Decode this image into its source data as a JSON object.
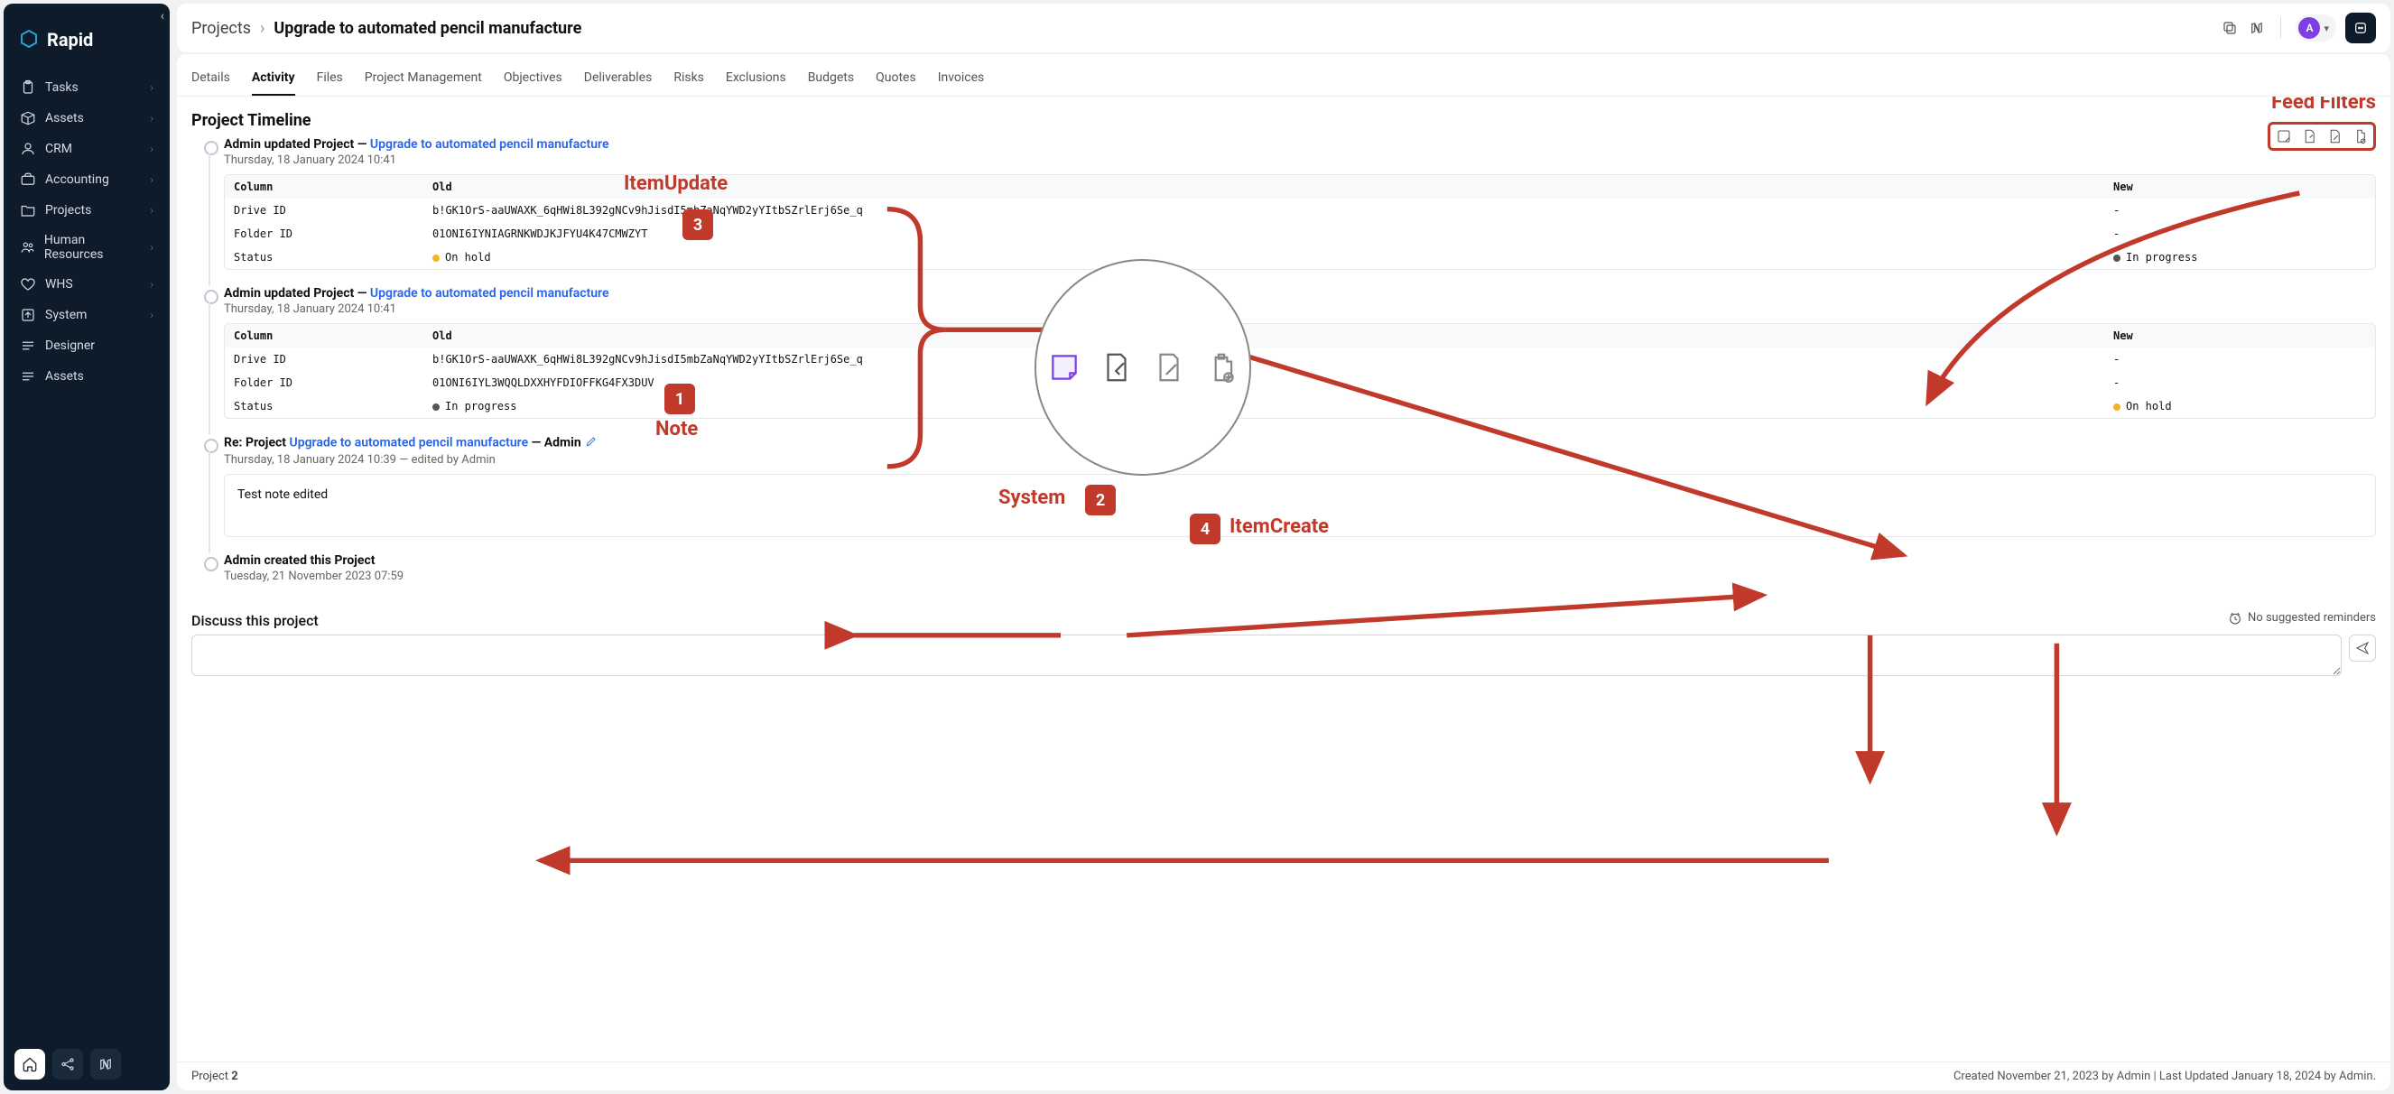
{
  "brand": "Rapid",
  "sidebar": {
    "items": [
      {
        "label": "Tasks",
        "icon": "clipboard",
        "chev": true
      },
      {
        "label": "Assets",
        "icon": "box",
        "chev": true
      },
      {
        "label": "CRM",
        "icon": "user",
        "chev": true
      },
      {
        "label": "Accounting",
        "icon": "briefcase",
        "chev": true
      },
      {
        "label": "Projects",
        "icon": "folder",
        "chev": true
      },
      {
        "label": "Human Resources",
        "icon": "users",
        "chev": true
      },
      {
        "label": "WHS",
        "icon": "heart",
        "chev": true
      },
      {
        "label": "System",
        "icon": "export",
        "chev": true
      },
      {
        "label": "Designer",
        "icon": "lines",
        "chev": false
      },
      {
        "label": "Assets",
        "icon": "lines",
        "chev": false
      }
    ]
  },
  "breadcrumb": {
    "root": "Projects",
    "current": "Upgrade to automated pencil manufacture"
  },
  "avatar": "A",
  "tabs": [
    "Details",
    "Activity",
    "Files",
    "Project Management",
    "Objectives",
    "Deliverables",
    "Risks",
    "Exclusions",
    "Budgets",
    "Quotes",
    "Invoices"
  ],
  "active_tab": "Activity",
  "section_title": "Project Timeline",
  "events": [
    {
      "type": "update",
      "head_prefix": "Admin updated Project — ",
      "link": "Upgrade to automated pencil manufacture",
      "date": "Thursday, 18 January 2024 10:41",
      "table_hdr": {
        "c": "Column",
        "o": "Old",
        "n": "New"
      },
      "rows": [
        {
          "c": "Drive ID",
          "o": "b!GK1OrS-aaUWAXK_6qHWi8L392gNCv9hJisdI5mbZaNqYWD2yYItbSZrlErj6Se_q",
          "n": "-"
        },
        {
          "c": "Folder ID",
          "o": "01ONI6IYNIAGRNKWDJKJFYU4K47CMWZYT",
          "n": "-"
        },
        {
          "c": "Status",
          "o": "On hold",
          "o_color": "#f0b429",
          "n": "In progress",
          "n_color": "#555"
        }
      ]
    },
    {
      "type": "update",
      "head_prefix": "Admin updated Project — ",
      "link": "Upgrade to automated pencil manufacture",
      "date": "Thursday, 18 January 2024 10:41",
      "table_hdr": {
        "c": "Column",
        "o": "Old",
        "n": "New"
      },
      "rows": [
        {
          "c": "Drive ID",
          "o": "b!GK1OrS-aaUWAXK_6qHWi8L392gNCv9hJisdI5mbZaNqYWD2yYItbSZrlErj6Se_q",
          "n": "-"
        },
        {
          "c": "Folder ID",
          "o": "01ONI6IYL3WQQLDXXHYFDIOFFKG4FX3DUV",
          "n": "-"
        },
        {
          "c": "Status",
          "o": "In progress",
          "o_color": "#555",
          "n": "On hold",
          "n_color": "#f0b429"
        }
      ]
    },
    {
      "type": "note",
      "head_prefix": "Re: Project ",
      "link": "Upgrade to automated pencil manufacture",
      "head_suffix": " — Admin",
      "date": "Thursday, 18 January 2024 10:39 — edited by Admin",
      "note_body": "Test note edited"
    },
    {
      "type": "create",
      "head_full": "Admin created this Project",
      "date": "Tuesday, 21 November 2023 07:59"
    }
  ],
  "discuss_title": "Discuss this project",
  "reminder_text": "No suggested reminders",
  "footer": {
    "left_label": "Project ",
    "left_value": "2",
    "meta": "Created November 21, 2023 by Admin | Last Updated January 18, 2024 by Admin."
  },
  "annotations": {
    "feed_filters": "Feed Filters",
    "item_update": "ItemUpdate",
    "note": "Note",
    "system": "System",
    "item_create": "ItemCreate",
    "accent": "#c0392b"
  }
}
